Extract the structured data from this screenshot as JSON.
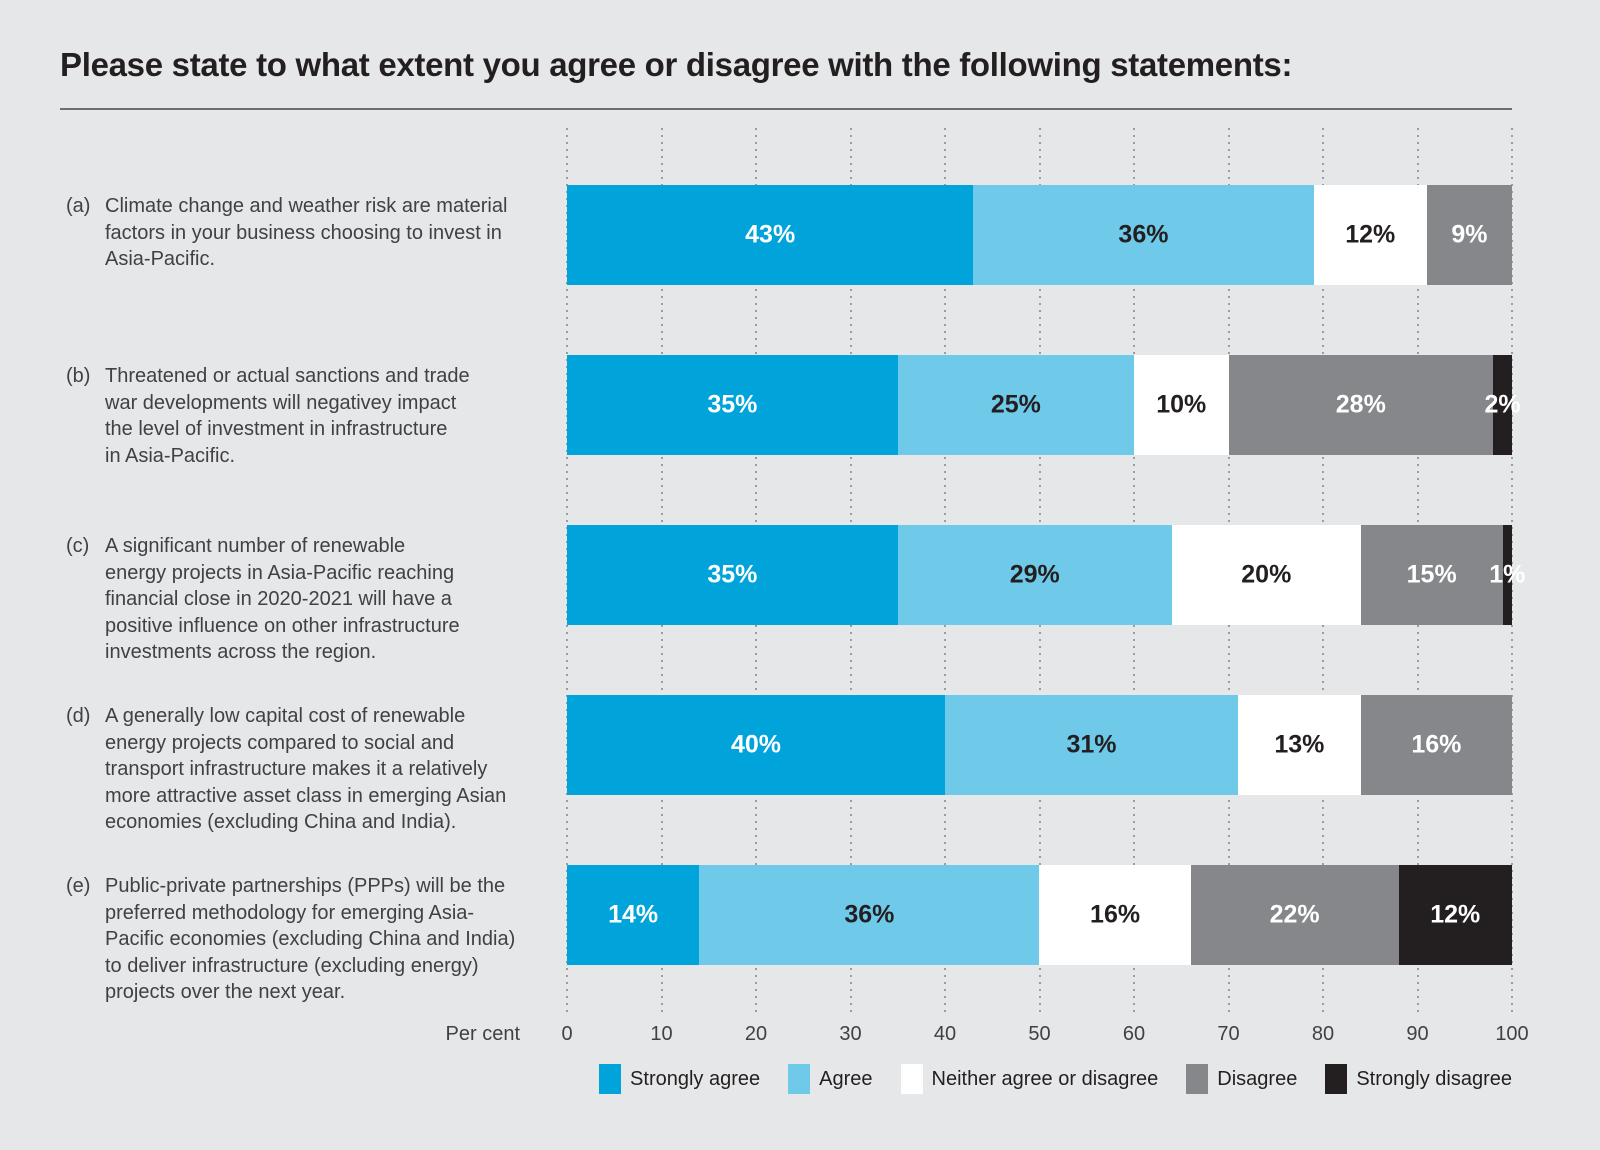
{
  "title": "Please state to what extent you agree or disagree with the following statements:",
  "colors": {
    "background": "#e6e7e8",
    "text_dark": "#231f20",
    "text_body": "#414042",
    "gridline": "#9a9ca0",
    "divider": "#6d6e71"
  },
  "chart_data": {
    "type": "bar",
    "orientation": "horizontal",
    "stacked": true,
    "unit": "%",
    "xlabel": "Per cent",
    "xlim": [
      0,
      100
    ],
    "xticks": [
      0,
      10,
      20,
      30,
      40,
      50,
      60,
      70,
      80,
      90,
      100
    ],
    "grid": "vertical-dotted",
    "legend_position": "bottom",
    "categories": [
      "(a) Climate change and weather risk are material factors in your business choosing to invest in Asia-Pacific.",
      "(b) Threatened or actual sanctions and trade war developments will negativey impact the level of investment in infrastructure in Asia-Pacific.",
      "(c) A significant number of renewable energy projects in Asia-Pacific reaching financial close in 2020-2021 will have a positive influence on other infrastructure investments across the region.",
      "(d) A generally low capital cost of renewable energy projects compared to social and transport infrastructure makes it a relatively more attractive asset class in emerging Asian economies (excluding China and India).",
      "(e) Public-private partnerships (PPPs) will be the preferred methodology for emerging Asia-Pacific economies (excluding China and India) to deliver infrastructure (excluding energy) projects over the next year."
    ],
    "statements": [
      {
        "letter": "(a)",
        "lines": [
          "Climate change and weather risk are material",
          "factors in your business choosing to invest in",
          "Asia-Pacific."
        ]
      },
      {
        "letter": "(b)",
        "lines": [
          "Threatened or actual sanctions and trade",
          "war developments will negativey impact",
          "the level of investment in infrastructure",
          "in Asia-Pacific."
        ]
      },
      {
        "letter": "(c)",
        "lines": [
          "A significant number of renewable",
          "energy projects in Asia-Pacific reaching",
          "financial close in 2020-2021 will have a",
          "positive influence on other infrastructure",
          "investments across the region."
        ]
      },
      {
        "letter": "(d)",
        "lines": [
          "A generally low capital cost of renewable",
          "energy projects compared to social and",
          "transport infrastructure makes it a relatively",
          "more attractive asset class in emerging Asian",
          "economies (excluding China and India)."
        ]
      },
      {
        "letter": "(e)",
        "lines": [
          "Public-private partnerships (PPPs) will be the",
          "preferred methodology for emerging Asia-",
          "Pacific economies (excluding China and India)",
          "to deliver infrastructure (excluding energy)",
          "projects over the next year."
        ]
      }
    ],
    "series": [
      {
        "name": "Strongly agree",
        "color": "#00a3da",
        "label_color": "#ffffff",
        "values": [
          43,
          35,
          35,
          40,
          14
        ]
      },
      {
        "name": "Agree",
        "color": "#6fc9e9",
        "label_color": "#231f20",
        "values": [
          36,
          25,
          29,
          31,
          36
        ]
      },
      {
        "name": "Neither agree or disagree",
        "color": "#ffffff",
        "label_color": "#231f20",
        "values": [
          12,
          10,
          20,
          13,
          16
        ]
      },
      {
        "name": "Disagree",
        "color": "#85878a",
        "label_color": "#ffffff",
        "values": [
          9,
          28,
          15,
          16,
          22
        ]
      },
      {
        "name": "Strongly disagree",
        "color": "#231f20",
        "label_color": "#ffffff",
        "values": [
          0,
          2,
          1,
          0,
          12
        ]
      }
    ]
  }
}
